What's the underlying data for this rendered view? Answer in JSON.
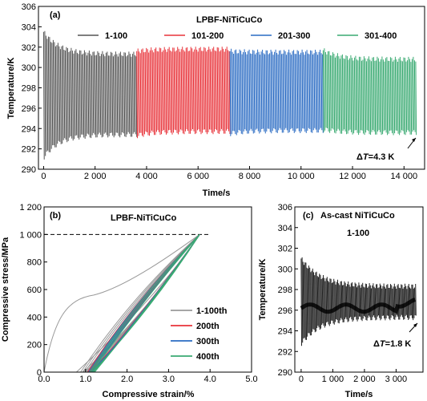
{
  "chart_data": [
    {
      "type": "line",
      "panel_label": "(a)",
      "title": "LPBF-NiTiCuCo",
      "xlabel": "Time/s",
      "ylabel": "Temperature/K",
      "xlim": [
        -200,
        14800
      ],
      "ylim": [
        290,
        306
      ],
      "xticks": [
        0,
        2000,
        4000,
        6000,
        8000,
        10000,
        12000,
        14000
      ],
      "xtick_labels": [
        "0",
        "2 000",
        "4 000",
        "6 000",
        "8 000",
        "10 000",
        "12 000",
        "14 000"
      ],
      "yticks": [
        290,
        292,
        294,
        296,
        298,
        300,
        302,
        304,
        306
      ],
      "ytick_labels": [
        "290",
        "292",
        "294",
        "296",
        "298",
        "300",
        "302",
        "304",
        "306"
      ],
      "legend_position": "top",
      "annotation": {
        "prefix": "Δ",
        "italic": "T",
        "suffix": "=4.3 K"
      },
      "series": [
        {
          "name": "1-100",
          "color": "#555555",
          "x_start": 0,
          "x_end": 3620,
          "max_start": 303.5,
          "max_end": 301.3,
          "min_start": 291.2,
          "min_end": 293.4
        },
        {
          "name": "101-200",
          "color": "#e8333a",
          "x_start": 3620,
          "x_end": 7240,
          "max_start": 301.6,
          "max_end": 301.8,
          "min_start": 293.3,
          "min_end": 293.7
        },
        {
          "name": "201-300",
          "color": "#2a6bc3",
          "x_start": 7240,
          "x_end": 10860,
          "max_start": 301.6,
          "max_end": 301.5,
          "min_start": 293.5,
          "min_end": 293.8
        },
        {
          "name": "301-400",
          "color": "#3aaa72",
          "x_start": 10860,
          "x_end": 14480,
          "max_start": 301.7,
          "max_end": 300.8,
          "min_start": 293.9,
          "min_end": 293.6
        }
      ]
    },
    {
      "type": "line",
      "panel_label": "(b)",
      "title": "LPBF-NiTiCuCo",
      "xlabel": "Compressive strain/%",
      "ylabel": "Compressive stress/MPa",
      "xlim": [
        0,
        5.0
      ],
      "ylim": [
        0,
        1200
      ],
      "xticks": [
        0,
        1.0,
        2.0,
        3.0,
        4.0,
        5.0
      ],
      "xtick_labels": [
        "0.0",
        "1.0",
        "2.0",
        "3.0",
        "4.0",
        "5.0"
      ],
      "yticks": [
        0,
        200,
        400,
        600,
        800,
        1000,
        1200
      ],
      "ytick_labels": [
        "0",
        "200",
        "400",
        "600",
        "800",
        "1 000",
        "1 200"
      ],
      "reference_line": {
        "y": 1000,
        "style": "dashed"
      },
      "legend_position": "right",
      "series": [
        {
          "name": "1-100th",
          "color": "#999999",
          "peak_strain": 3.75,
          "peak_stress": 1000,
          "residual_strain": 0.95
        },
        {
          "name": "200th",
          "color": "#e8333a",
          "peak_strain": 3.75,
          "peak_stress": 1000,
          "residual_strain": 1.05
        },
        {
          "name": "300th",
          "color": "#2a6bc3",
          "peak_strain": 3.75,
          "peak_stress": 1000,
          "residual_strain": 1.07
        },
        {
          "name": "400th",
          "color": "#3aaa72",
          "peak_strain": 3.75,
          "peak_stress": 1000,
          "residual_strain": 1.1
        }
      ]
    },
    {
      "type": "line",
      "panel_label": "(c)",
      "title": "As-cast NiTiCuCo",
      "subtitle": "1-100",
      "xlabel": "Time/s",
      "ylabel": "Temperature/K",
      "xlim": [
        -200,
        3850
      ],
      "ylim": [
        290,
        306
      ],
      "xticks": [
        0,
        1000,
        2000,
        3000
      ],
      "xtick_labels": [
        "0",
        "1 000",
        "2 000",
        "3 000"
      ],
      "yticks": [
        290,
        292,
        294,
        296,
        298,
        300,
        302,
        304,
        306
      ],
      "ytick_labels": [
        "290",
        "292",
        "294",
        "296",
        "298",
        "300",
        "302",
        "304",
        "306"
      ],
      "annotation": {
        "prefix": "Δ",
        "italic": "T",
        "suffix": "=1.8 K"
      },
      "series": [
        {
          "name": "",
          "color": "#222222",
          "x_start": 0,
          "x_end": 3620,
          "max_start": 301.0,
          "max_end": 298.3,
          "min_start": 292.8,
          "min_end": 295.3
        }
      ]
    }
  ]
}
